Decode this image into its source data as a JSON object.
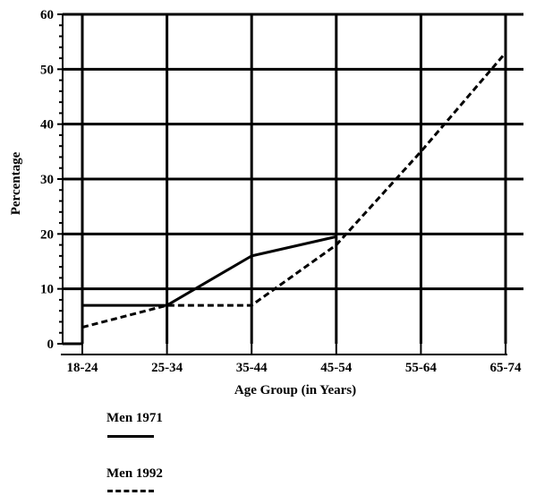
{
  "chart_data": {
    "type": "line",
    "title": "",
    "xlabel": "Age Group (in Years)",
    "ylabel": "Percentage",
    "categories": [
      "18-24",
      "25-34",
      "35-44",
      "45-54",
      "55-64",
      "65-74"
    ],
    "ylim": [
      0,
      60
    ],
    "yticks": [
      0,
      10,
      20,
      30,
      40,
      50,
      60
    ],
    "grid": true,
    "legend_position": "bottom-left",
    "series": [
      {
        "name": "Men 1971",
        "style": "solid",
        "color": "#000000",
        "values": [
          7,
          7,
          16,
          19.5,
          null,
          null
        ]
      },
      {
        "name": "Men 1992",
        "style": "dashed",
        "color": "#000000",
        "values": [
          3,
          7,
          7,
          18,
          35,
          53
        ]
      }
    ]
  }
}
